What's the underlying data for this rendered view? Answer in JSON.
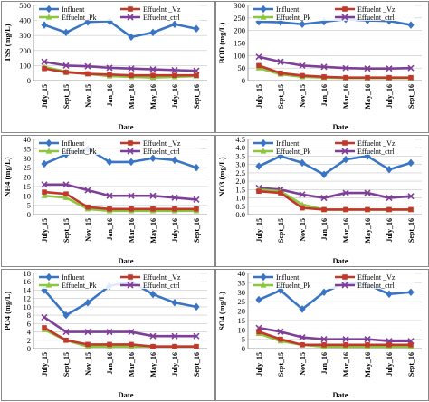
{
  "chart_data": [
    {
      "type": "line",
      "ylabel": "TSS (mg/L)",
      "xlabel": "Date",
      "ylim": [
        0,
        500
      ],
      "ytick_step": 100,
      "categories": [
        "July_15",
        "Sept_15",
        "Nov_15",
        "Jan_16",
        "Mar_16",
        "May_16",
        "July_16",
        "Sept_16"
      ],
      "series": [
        {
          "name": "Influent",
          "color": "#3a74c4",
          "marker": "diamond",
          "values": [
            370,
            320,
            390,
            395,
            290,
            320,
            375,
            345
          ]
        },
        {
          "name": "Effuelnt _Vz",
          "color": "#c0392b",
          "marker": "square",
          "values": [
            80,
            55,
            45,
            40,
            35,
            35,
            35,
            35
          ]
        },
        {
          "name": "Effuelnt_Pk",
          "color": "#8dc63f",
          "marker": "triangle",
          "values": [
            90,
            60,
            45,
            30,
            25,
            20,
            25,
            30
          ]
        },
        {
          "name": "Effuelnt_ctrl",
          "color": "#7e3f98",
          "marker": "x",
          "values": [
            125,
            100,
            95,
            85,
            80,
            75,
            70,
            65
          ]
        }
      ]
    },
    {
      "type": "line",
      "ylabel": "BOD (mg/L)",
      "xlabel": "Date",
      "ylim": [
        0,
        300
      ],
      "ytick_step": 50,
      "categories": [
        "July_15",
        "Sept_15",
        "Nov_15",
        "Jan_16",
        "Mar_16",
        "May_16",
        "July_16",
        "Sept_16"
      ],
      "series": [
        {
          "name": "Influent",
          "color": "#3a74c4",
          "marker": "diamond",
          "values": [
            235,
            233,
            225,
            235,
            245,
            240,
            238,
            222
          ]
        },
        {
          "name": "Effuelnt _Vz",
          "color": "#c0392b",
          "marker": "square",
          "values": [
            60,
            30,
            20,
            15,
            12,
            12,
            12,
            12
          ]
        },
        {
          "name": "Effuelnt_Pk",
          "color": "#8dc63f",
          "marker": "triangle",
          "values": [
            50,
            25,
            15,
            12,
            10,
            10,
            10,
            10
          ]
        },
        {
          "name": "Effuelnt_ctrl",
          "color": "#7e3f98",
          "marker": "x",
          "values": [
            95,
            75,
            60,
            55,
            50,
            48,
            48,
            50
          ]
        }
      ]
    },
    {
      "type": "line",
      "ylabel": "NH4 (mg/L)",
      "xlabel": "Date",
      "ylim": [
        0,
        40
      ],
      "ytick_step": 5,
      "categories": [
        "July_15",
        "Sept_15",
        "Nov_15",
        "Jan_16",
        "Mar_16",
        "May_16",
        "July_16",
        "Sept_16"
      ],
      "series": [
        {
          "name": "Influent",
          "color": "#3a74c4",
          "marker": "diamond",
          "values": [
            27,
            32,
            35,
            28,
            28,
            30,
            29,
            25
          ]
        },
        {
          "name": "Effuelnt _Vz",
          "color": "#c0392b",
          "marker": "square",
          "values": [
            12,
            11,
            4,
            3,
            3,
            3,
            3,
            3
          ]
        },
        {
          "name": "Effuelnt_Pk",
          "color": "#8dc63f",
          "marker": "triangle",
          "values": [
            10,
            9,
            3,
            2,
            2,
            2,
            2,
            2
          ]
        },
        {
          "name": "Effuelnt_ctrl",
          "color": "#7e3f98",
          "marker": "x",
          "values": [
            16,
            16,
            13,
            10,
            10,
            10,
            9,
            8
          ]
        }
      ]
    },
    {
      "type": "line",
      "ylabel": "NO3 (mg/L)",
      "xlabel": "Date",
      "ylim": [
        0,
        4.5
      ],
      "ytick_step": 0.5,
      "categories": [
        "July_15",
        "Sept_15",
        "Nov_15",
        "Jan_16",
        "Mar_16",
        "May_16",
        "July_16",
        "Sept_16"
      ],
      "series": [
        {
          "name": "Influent",
          "color": "#3a74c4",
          "marker": "diamond",
          "values": [
            2.9,
            3.5,
            3.1,
            2.4,
            3.3,
            3.5,
            2.7,
            3.1
          ]
        },
        {
          "name": "Effuelnt _Vz",
          "color": "#c0392b",
          "marker": "square",
          "values": [
            1.4,
            1.3,
            0.4,
            0.3,
            0.3,
            0.3,
            0.3,
            0.3
          ]
        },
        {
          "name": "Effuelnt_Pk",
          "color": "#8dc63f",
          "marker": "triangle",
          "values": [
            1.5,
            1.4,
            0.6,
            0.3,
            0.3,
            0.3,
            0.3,
            0.3
          ]
        },
        {
          "name": "Effuelnt_ctrl",
          "color": "#7e3f98",
          "marker": "x",
          "values": [
            1.6,
            1.5,
            1.2,
            1.0,
            1.3,
            1.3,
            1.0,
            1.1
          ]
        }
      ]
    },
    {
      "type": "line",
      "ylabel": "PO4 (mg/L)",
      "xlabel": "Date",
      "ylim": [
        0,
        18
      ],
      "ytick_step": 2,
      "categories": [
        "July_15",
        "Sept_15",
        "Nov_15",
        "Jan_16",
        "Mar_16",
        "May_16",
        "July_16",
        "Sept_16"
      ],
      "series": [
        {
          "name": "Influent",
          "color": "#3a74c4",
          "marker": "diamond",
          "values": [
            14,
            8,
            11,
            15,
            16,
            13,
            11,
            10
          ]
        },
        {
          "name": "Effuelnt _Vz",
          "color": "#c0392b",
          "marker": "square",
          "values": [
            5,
            2,
            1,
            1,
            1,
            0.5,
            0.5,
            0.5
          ]
        },
        {
          "name": "Effuelnt_Pk",
          "color": "#8dc63f",
          "marker": "triangle",
          "values": [
            4.5,
            2,
            0.5,
            0.5,
            0.5,
            0.5,
            0.5,
            0.5
          ]
        },
        {
          "name": "Effuelnt_ctrl",
          "color": "#7e3f98",
          "marker": "x",
          "values": [
            7.5,
            4,
            4,
            4,
            4,
            3,
            3,
            3
          ]
        }
      ]
    },
    {
      "type": "line",
      "ylabel": "SO4 (mg/L)",
      "xlabel": "Date",
      "ylim": [
        0,
        40
      ],
      "ytick_step": 5,
      "categories": [
        "July_15",
        "Sept_15",
        "Nov_15",
        "Jan_16",
        "Mar_16",
        "May_16",
        "July_16",
        "Sept_16"
      ],
      "series": [
        {
          "name": "Influent",
          "color": "#3a74c4",
          "marker": "diamond",
          "values": [
            26,
            31,
            21,
            30,
            35,
            34,
            29,
            30
          ]
        },
        {
          "name": "Effuelnt _Vz",
          "color": "#c0392b",
          "marker": "square",
          "values": [
            9,
            5,
            2,
            2,
            2,
            2,
            2,
            2
          ]
        },
        {
          "name": "Effuelnt_Pk",
          "color": "#8dc63f",
          "marker": "triangle",
          "values": [
            8,
            4,
            2,
            1,
            1,
            1,
            1,
            1
          ]
        },
        {
          "name": "Effuelnt_ctrl",
          "color": "#7e3f98",
          "marker": "x",
          "values": [
            11,
            9,
            6,
            5,
            5,
            5,
            4,
            4
          ]
        }
      ]
    }
  ]
}
